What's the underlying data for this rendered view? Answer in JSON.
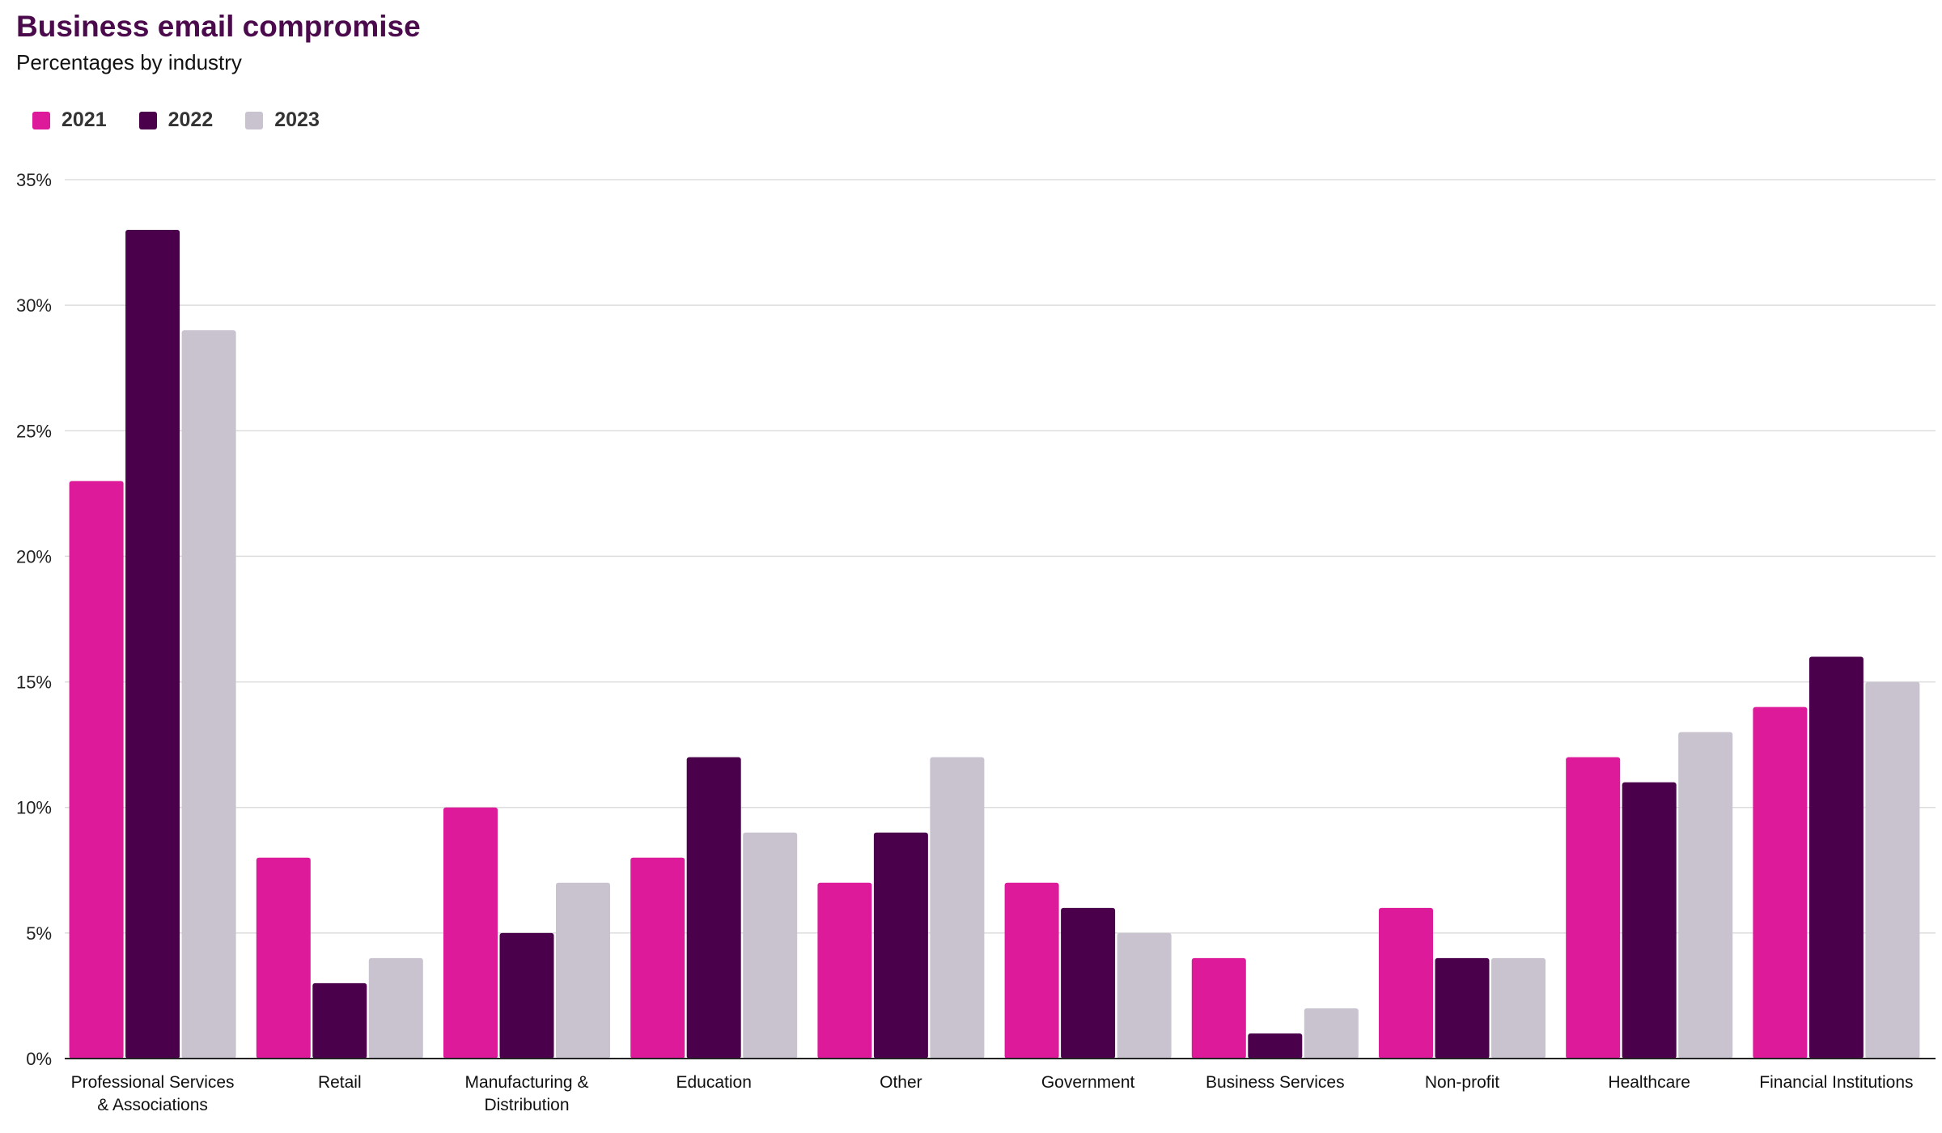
{
  "header": {
    "title": "Business email compromise",
    "subtitle": "Percentages by industry"
  },
  "colors": {
    "2021": "#dd1a9a",
    "2022": "#4b004b",
    "2023": "#c8c3cf",
    "grid": "#dddddd",
    "axis": "#222222"
  },
  "chart_data": {
    "type": "bar",
    "title": "Business email compromise",
    "subtitle": "Percentages by industry",
    "xlabel": "",
    "ylabel": "",
    "ylim": [
      0,
      35
    ],
    "yticks": [
      0,
      5,
      10,
      15,
      20,
      25,
      30,
      35
    ],
    "ytick_labels": [
      "0%",
      "5%",
      "10%",
      "15%",
      "20%",
      "25%",
      "30%",
      "35%"
    ],
    "grid": true,
    "legend_position": "top-left",
    "categories": [
      [
        "Professional Services",
        "& Associations"
      ],
      [
        "Retail"
      ],
      [
        "Manufacturing &",
        "Distribution"
      ],
      [
        "Education"
      ],
      [
        "Other"
      ],
      [
        "Government"
      ],
      [
        "Business Services"
      ],
      [
        "Non-profit"
      ],
      [
        "Healthcare"
      ],
      [
        "Financial Institutions"
      ]
    ],
    "series": [
      {
        "name": "2021",
        "values": [
          23,
          8,
          10,
          8,
          7,
          7,
          4,
          6,
          12,
          14
        ]
      },
      {
        "name": "2022",
        "values": [
          33,
          3,
          5,
          12,
          9,
          6,
          1,
          4,
          11,
          16
        ]
      },
      {
        "name": "2023",
        "values": [
          29,
          4,
          7,
          9,
          12,
          5,
          2,
          4,
          13,
          15
        ]
      }
    ]
  }
}
